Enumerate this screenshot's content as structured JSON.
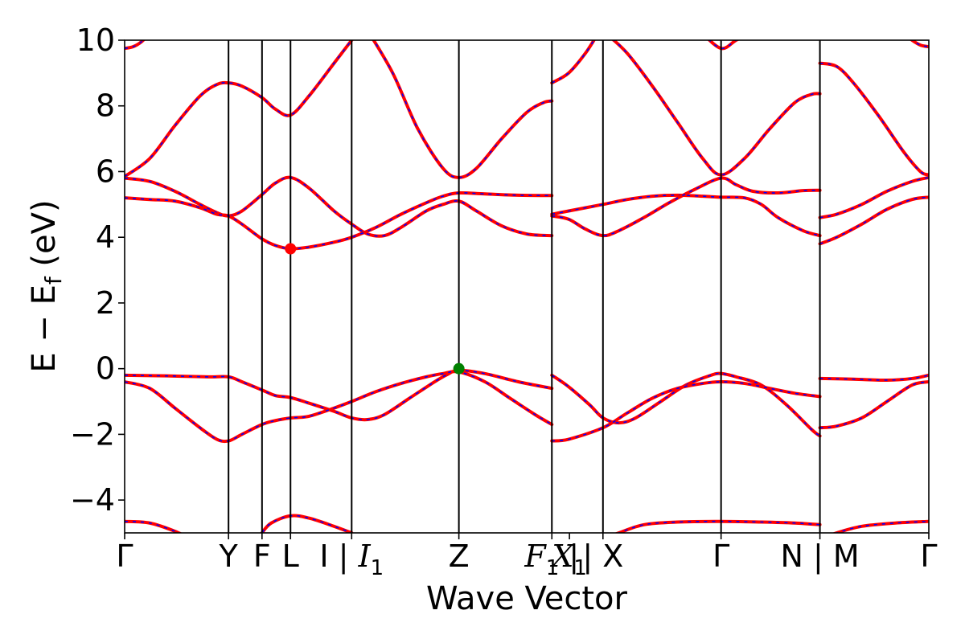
{
  "chart_data": {
    "type": "line",
    "title": "",
    "xlabel": "Wave Vector",
    "ylabel": "E − E",
    "ylabel_sub": "f",
    "ylabel_unit": " (eV)",
    "ylim": [
      -5,
      10
    ],
    "yticks": [
      10,
      8,
      6,
      4,
      2,
      0,
      -2,
      -4
    ],
    "ytick_labels": [
      "10",
      "8",
      "6",
      "4",
      "2",
      "0",
      "−2",
      "−4"
    ],
    "grid": false,
    "legend": "none",
    "colors": {
      "band_main": "#ff0000",
      "band_dashed": "#0000ff",
      "cbm_marker": "#ff0000",
      "vbm_marker": "#008000",
      "frame": "#000000"
    },
    "kpath": [
      {
        "pos": 0.0,
        "main": "Γ",
        "italic": "",
        "sub": "",
        "tail": ""
      },
      {
        "pos": 0.124,
        "main": "Y",
        "italic": "",
        "sub": "",
        "tail": ""
      },
      {
        "pos": 0.164,
        "main": "F",
        "italic": "",
        "sub": "",
        "tail": ""
      },
      {
        "pos": 0.198,
        "main": "L",
        "italic": "",
        "sub": "",
        "tail": ""
      },
      {
        "pos": 0.271,
        "main": "I | ",
        "italic": "I",
        "sub": "1",
        "tail": ""
      },
      {
        "pos": 0.399,
        "main": "Z",
        "italic": "",
        "sub": "",
        "tail": ""
      },
      {
        "pos": 0.51,
        "main": "",
        "italic": "F",
        "sub": "1",
        "tail": " |"
      },
      {
        "pos": 0.531,
        "main": "",
        "italic": "X",
        "sub": "1",
        "tail": ""
      },
      {
        "pos": 0.571,
        "main": "| X",
        "italic": "",
        "sub": "",
        "tail": ""
      },
      {
        "pos": 0.712,
        "main": "Γ",
        "italic": "",
        "sub": "",
        "tail": ""
      },
      {
        "pos": 0.83,
        "main": "N | M",
        "italic": "",
        "sub": "",
        "tail": ""
      },
      {
        "pos": 0.96,
        "main": "Γ",
        "italic": "",
        "sub": "",
        "tail": ""
      }
    ],
    "vlines": [
      0.124,
      0.164,
      0.198,
      0.271,
      0.399,
      0.51,
      0.571,
      0.712,
      0.83
    ],
    "segments": [
      [
        0.0,
        0.124
      ],
      [
        0.124,
        0.164
      ],
      [
        0.164,
        0.198
      ],
      [
        0.198,
        0.271
      ],
      [
        0.271,
        0.399
      ],
      [
        0.399,
        0.51
      ],
      [
        0.51,
        0.571
      ],
      [
        0.571,
        0.712
      ],
      [
        0.712,
        0.83
      ],
      [
        0.83,
        0.96
      ]
    ],
    "series": [
      {
        "points": [
          [
            0.0,
            9.75
          ],
          [
            0.01,
            9.8
          ],
          [
            0.02,
            9.95
          ],
          [
            0.03,
            10.2
          ]
        ]
      },
      {
        "points": [
          [
            0.0,
            5.85
          ],
          [
            0.03,
            6.4
          ],
          [
            0.06,
            7.4
          ],
          [
            0.09,
            8.3
          ],
          [
            0.11,
            8.65
          ],
          [
            0.124,
            8.7
          ],
          [
            0.14,
            8.6
          ],
          [
            0.164,
            8.25
          ],
          [
            0.18,
            7.9
          ],
          [
            0.198,
            7.72
          ],
          [
            0.22,
            8.3
          ],
          [
            0.25,
            9.3
          ],
          [
            0.271,
            10.0
          ],
          [
            0.28,
            10.3
          ]
        ]
      },
      {
        "points": [
          [
            0.29,
            10.3
          ],
          [
            0.32,
            9.0
          ],
          [
            0.35,
            7.3
          ],
          [
            0.38,
            6.1
          ],
          [
            0.399,
            5.82
          ],
          [
            0.42,
            6.1
          ],
          [
            0.45,
            7.0
          ],
          [
            0.48,
            7.8
          ],
          [
            0.5,
            8.1
          ],
          [
            0.51,
            8.15
          ]
        ]
      },
      {
        "points": [
          [
            0.0,
            5.8
          ],
          [
            0.03,
            5.7
          ],
          [
            0.06,
            5.4
          ],
          [
            0.09,
            5.0
          ],
          [
            0.11,
            4.75
          ],
          [
            0.124,
            4.65
          ],
          [
            0.14,
            4.8
          ],
          [
            0.164,
            5.3
          ],
          [
            0.18,
            5.65
          ],
          [
            0.198,
            5.82
          ],
          [
            0.22,
            5.5
          ],
          [
            0.25,
            4.8
          ],
          [
            0.271,
            4.4
          ],
          [
            0.29,
            4.1
          ],
          [
            0.31,
            4.05
          ],
          [
            0.33,
            4.3
          ],
          [
            0.36,
            4.8
          ],
          [
            0.38,
            5.0
          ],
          [
            0.399,
            5.1
          ],
          [
            0.42,
            4.8
          ],
          [
            0.45,
            4.35
          ],
          [
            0.48,
            4.1
          ],
          [
            0.51,
            4.05
          ]
        ]
      },
      {
        "points": [
          [
            0.0,
            5.2
          ],
          [
            0.03,
            5.15
          ],
          [
            0.06,
            5.1
          ],
          [
            0.09,
            4.9
          ],
          [
            0.11,
            4.7
          ],
          [
            0.124,
            4.65
          ],
          [
            0.14,
            4.4
          ],
          [
            0.164,
            3.95
          ],
          [
            0.18,
            3.75
          ],
          [
            0.198,
            3.65
          ],
          [
            0.22,
            3.7
          ],
          [
            0.25,
            3.85
          ],
          [
            0.271,
            4.0
          ],
          [
            0.3,
            4.3
          ],
          [
            0.33,
            4.7
          ],
          [
            0.36,
            5.05
          ],
          [
            0.38,
            5.25
          ],
          [
            0.399,
            5.35
          ],
          [
            0.43,
            5.32
          ],
          [
            0.47,
            5.28
          ],
          [
            0.51,
            5.27
          ]
        ]
      },
      {
        "points": [
          [
            0.0,
            -0.2
          ],
          [
            0.05,
            -0.22
          ],
          [
            0.1,
            -0.25
          ],
          [
            0.124,
            -0.25
          ],
          [
            0.14,
            -0.4
          ],
          [
            0.164,
            -0.65
          ],
          [
            0.18,
            -0.82
          ],
          [
            0.198,
            -0.88
          ],
          [
            0.22,
            -1.05
          ],
          [
            0.25,
            -1.3
          ],
          [
            0.271,
            -1.5
          ],
          [
            0.29,
            -1.55
          ],
          [
            0.31,
            -1.4
          ],
          [
            0.34,
            -0.9
          ],
          [
            0.37,
            -0.4
          ],
          [
            0.385,
            -0.18
          ],
          [
            0.399,
            -0.05
          ],
          [
            0.43,
            -0.15
          ],
          [
            0.47,
            -0.4
          ],
          [
            0.51,
            -0.6
          ]
        ]
      },
      {
        "points": [
          [
            0.0,
            -0.4
          ],
          [
            0.03,
            -0.6
          ],
          [
            0.06,
            -1.2
          ],
          [
            0.09,
            -1.8
          ],
          [
            0.11,
            -2.15
          ],
          [
            0.124,
            -2.2
          ],
          [
            0.14,
            -2.0
          ],
          [
            0.164,
            -1.7
          ],
          [
            0.18,
            -1.58
          ],
          [
            0.198,
            -1.5
          ],
          [
            0.22,
            -1.45
          ],
          [
            0.25,
            -1.2
          ],
          [
            0.271,
            -1.0
          ],
          [
            0.3,
            -0.7
          ],
          [
            0.33,
            -0.45
          ],
          [
            0.36,
            -0.25
          ],
          [
            0.38,
            -0.15
          ],
          [
            0.399,
            -0.1
          ],
          [
            0.43,
            -0.4
          ],
          [
            0.46,
            -0.9
          ],
          [
            0.49,
            -1.4
          ],
          [
            0.51,
            -1.7
          ]
        ]
      },
      {
        "points": [
          [
            0.0,
            -4.65
          ],
          [
            0.03,
            -4.7
          ],
          [
            0.06,
            -4.95
          ],
          [
            0.08,
            -5.2
          ]
        ]
      },
      {
        "points": [
          [
            0.16,
            -5.2
          ],
          [
            0.164,
            -5.0
          ],
          [
            0.175,
            -4.7
          ],
          [
            0.198,
            -4.48
          ],
          [
            0.22,
            -4.55
          ],
          [
            0.25,
            -4.8
          ],
          [
            0.271,
            -5.0
          ]
        ]
      },
      {
        "points": [
          [
            0.51,
            8.7
          ],
          [
            0.53,
            9.0
          ],
          [
            0.55,
            9.6
          ],
          [
            0.565,
            10.2
          ]
        ]
      },
      {
        "points": [
          [
            0.575,
            10.2
          ],
          [
            0.6,
            9.6
          ],
          [
            0.63,
            8.6
          ],
          [
            0.66,
            7.5
          ],
          [
            0.69,
            6.4
          ],
          [
            0.712,
            5.9
          ],
          [
            0.74,
            6.4
          ],
          [
            0.77,
            7.3
          ],
          [
            0.8,
            8.1
          ],
          [
            0.82,
            8.35
          ],
          [
            0.83,
            8.37
          ]
        ]
      },
      {
        "points": [
          [
            0.51,
            4.7
          ],
          [
            0.53,
            4.8
          ],
          [
            0.571,
            5.0
          ],
          [
            0.6,
            5.15
          ],
          [
            0.63,
            5.25
          ],
          [
            0.66,
            5.28
          ],
          [
            0.69,
            5.25
          ],
          [
            0.712,
            5.22
          ],
          [
            0.74,
            5.2
          ],
          [
            0.76,
            5.0
          ],
          [
            0.78,
            4.6
          ],
          [
            0.81,
            4.2
          ],
          [
            0.83,
            4.05
          ]
        ]
      },
      {
        "points": [
          [
            0.51,
            4.65
          ],
          [
            0.53,
            4.55
          ],
          [
            0.55,
            4.25
          ],
          [
            0.571,
            4.05
          ],
          [
            0.59,
            4.2
          ],
          [
            0.62,
            4.6
          ],
          [
            0.65,
            5.05
          ],
          [
            0.68,
            5.45
          ],
          [
            0.712,
            5.8
          ],
          [
            0.73,
            5.6
          ],
          [
            0.75,
            5.4
          ],
          [
            0.78,
            5.35
          ],
          [
            0.81,
            5.42
          ],
          [
            0.83,
            5.43
          ]
        ]
      },
      {
        "points": [
          [
            0.69,
            10.2
          ],
          [
            0.712,
            9.75
          ],
          [
            0.73,
            10.0
          ],
          [
            0.745,
            10.2
          ]
        ]
      },
      {
        "points": [
          [
            0.51,
            -0.2
          ],
          [
            0.53,
            -0.55
          ],
          [
            0.555,
            -1.1
          ],
          [
            0.571,
            -1.5
          ],
          [
            0.59,
            -1.65
          ],
          [
            0.61,
            -1.5
          ],
          [
            0.64,
            -1.0
          ],
          [
            0.67,
            -0.5
          ],
          [
            0.7,
            -0.2
          ],
          [
            0.712,
            -0.15
          ],
          [
            0.73,
            -0.25
          ],
          [
            0.76,
            -0.5
          ],
          [
            0.79,
            -1.1
          ],
          [
            0.82,
            -1.85
          ],
          [
            0.83,
            -2.05
          ]
        ]
      },
      {
        "points": [
          [
            0.51,
            -2.2
          ],
          [
            0.53,
            -2.15
          ],
          [
            0.571,
            -1.8
          ],
          [
            0.6,
            -1.35
          ],
          [
            0.63,
            -0.9
          ],
          [
            0.66,
            -0.6
          ],
          [
            0.69,
            -0.45
          ],
          [
            0.712,
            -0.4
          ],
          [
            0.74,
            -0.45
          ],
          [
            0.77,
            -0.6
          ],
          [
            0.8,
            -0.75
          ],
          [
            0.83,
            -0.85
          ]
        ]
      },
      {
        "points": [
          [
            0.57,
            -5.2
          ],
          [
            0.59,
            -5.0
          ],
          [
            0.62,
            -4.75
          ],
          [
            0.66,
            -4.67
          ],
          [
            0.712,
            -4.65
          ],
          [
            0.76,
            -4.67
          ],
          [
            0.8,
            -4.7
          ],
          [
            0.83,
            -4.75
          ]
        ]
      },
      {
        "points": [
          [
            0.83,
            9.3
          ],
          [
            0.85,
            9.2
          ],
          [
            0.87,
            8.7
          ],
          [
            0.9,
            7.7
          ],
          [
            0.93,
            6.6
          ],
          [
            0.95,
            6.0
          ],
          [
            0.96,
            5.9
          ]
        ]
      },
      {
        "points": [
          [
            0.83,
            4.6
          ],
          [
            0.85,
            4.7
          ],
          [
            0.88,
            5.0
          ],
          [
            0.91,
            5.4
          ],
          [
            0.94,
            5.7
          ],
          [
            0.96,
            5.82
          ]
        ]
      },
      {
        "points": [
          [
            0.83,
            3.8
          ],
          [
            0.85,
            4.0
          ],
          [
            0.88,
            4.4
          ],
          [
            0.91,
            4.85
          ],
          [
            0.94,
            5.15
          ],
          [
            0.96,
            5.22
          ]
        ]
      },
      {
        "points": [
          [
            0.83,
            -0.3
          ],
          [
            0.87,
            -0.32
          ],
          [
            0.91,
            -0.35
          ],
          [
            0.94,
            -0.3
          ],
          [
            0.96,
            -0.2
          ]
        ]
      },
      {
        "points": [
          [
            0.83,
            -1.8
          ],
          [
            0.85,
            -1.75
          ],
          [
            0.88,
            -1.5
          ],
          [
            0.91,
            -1.0
          ],
          [
            0.94,
            -0.5
          ],
          [
            0.96,
            -0.4
          ]
        ]
      },
      {
        "points": [
          [
            0.83,
            -5.2
          ],
          [
            0.85,
            -5.0
          ],
          [
            0.88,
            -4.8
          ],
          [
            0.92,
            -4.7
          ],
          [
            0.96,
            -4.65
          ]
        ]
      },
      {
        "points": [
          [
            0.93,
            10.2
          ],
          [
            0.94,
            10.0
          ],
          [
            0.95,
            9.85
          ],
          [
            0.96,
            9.8
          ]
        ]
      }
    ],
    "markers": [
      {
        "name": "cbm",
        "x": 0.198,
        "y": 3.65,
        "color": "#ff0000"
      },
      {
        "name": "vbm",
        "x": 0.399,
        "y": 0.0,
        "color": "#008000"
      }
    ]
  }
}
